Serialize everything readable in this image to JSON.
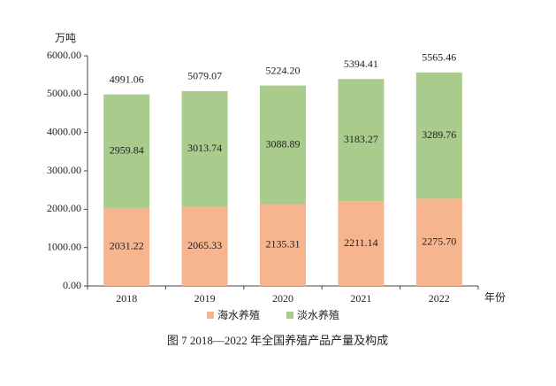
{
  "chart_data": {
    "type": "stacked_bar",
    "y_axis_label": "万吨",
    "x_axis_label": "年份",
    "caption": "图 7   2018—2022 年全国养殖产品产量及构成",
    "categories": [
      "2018",
      "2019",
      "2020",
      "2021",
      "2022"
    ],
    "series": [
      {
        "name": "海水养殖",
        "color": "#f6b48f",
        "values": [
          2031.22,
          2065.33,
          2135.31,
          2211.14,
          2275.7
        ],
        "value_labels": [
          "2031.22",
          "2065.33",
          "2135.31",
          "2211.14",
          "2275.70"
        ]
      },
      {
        "name": "淡水养殖",
        "color": "#a9cb8b",
        "values": [
          2959.84,
          3013.74,
          3088.89,
          3183.27,
          3289.76
        ],
        "value_labels": [
          "2959.84",
          "3013.74",
          "3088.89",
          "3183.27",
          "3289.76"
        ]
      }
    ],
    "totals": [
      4991.06,
      5079.07,
      5224.2,
      5394.41,
      5565.46
    ],
    "total_labels": [
      "4991.06",
      "5079.07",
      "5224.20",
      "5394.41",
      "5565.46"
    ],
    "ylim": [
      0,
      6000
    ],
    "yticks": [
      {
        "value": 0,
        "label": "0.00"
      },
      {
        "value": 1000,
        "label": "1000.00"
      },
      {
        "value": 2000,
        "label": "2000.00"
      },
      {
        "value": 3000,
        "label": "3000.00"
      },
      {
        "value": 4000,
        "label": "4000.00"
      },
      {
        "value": 5000,
        "label": "5000.00"
      },
      {
        "value": 6000,
        "label": "6000.00"
      }
    ],
    "grid": false
  }
}
